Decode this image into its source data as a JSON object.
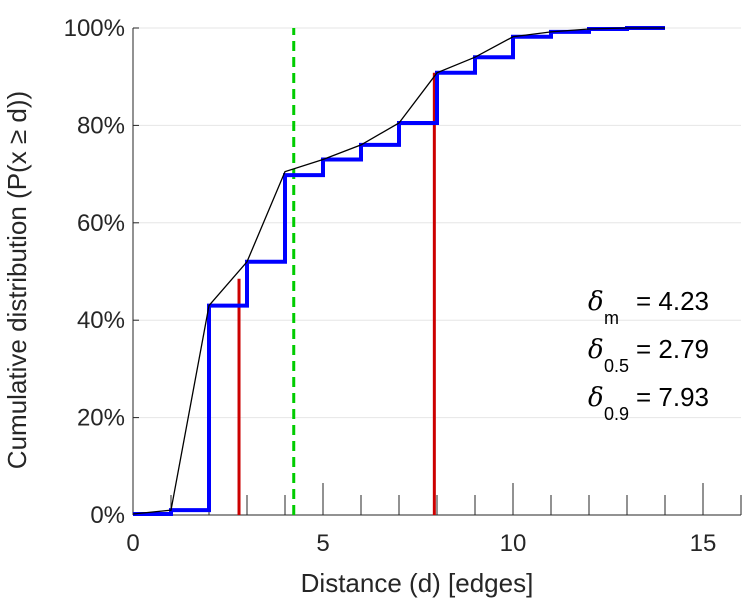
{
  "chart_data": {
    "type": "line",
    "title": "",
    "xlabel": "Distance (d) [edges]",
    "ylabel": "Cumulative distribution (P(x ≥ d))",
    "xlim": [
      0,
      16
    ],
    "ylim": [
      0,
      100
    ],
    "x_ticks": [
      0,
      5,
      10,
      15
    ],
    "x_tick_labels": [
      "0",
      "5",
      "10",
      "15"
    ],
    "y_ticks": [
      0,
      20,
      40,
      60,
      80,
      100
    ],
    "y_tick_labels": [
      "0%",
      "20%",
      "40%",
      "60%",
      "80%",
      "100%"
    ],
    "grid": "horizontal",
    "series": [
      {
        "kind": "step",
        "color": "#0000ff",
        "x": [
          0,
          1,
          2,
          3,
          4,
          5,
          6,
          7,
          8,
          9,
          10,
          11,
          12,
          13,
          14
        ],
        "y": [
          0.2,
          1.0,
          43.0,
          52.0,
          69.8,
          73.0,
          76.0,
          80.5,
          90.8,
          94.0,
          98.2,
          99.2,
          99.8,
          100.0,
          100.0
        ]
      },
      {
        "kind": "line",
        "color": "#000000",
        "x": [
          0,
          1,
          2,
          3,
          4,
          5,
          6,
          7,
          8,
          9,
          10,
          11,
          12,
          13,
          14
        ],
        "y": [
          0.2,
          1.0,
          43.0,
          52.0,
          70.5,
          73.0,
          76.0,
          80.5,
          90.8,
          94.0,
          98.2,
          99.2,
          99.8,
          100.0,
          100.0
        ]
      }
    ],
    "vertical_lines": [
      {
        "x": 2.79,
        "y_top": 48.5,
        "color": "#cc0000",
        "style": "solid"
      },
      {
        "x": 7.93,
        "y_top": 90.8,
        "color": "#cc0000",
        "style": "solid"
      },
      {
        "x": 4.23,
        "y_top": 100,
        "color": "#00cc00",
        "style": "dashed"
      }
    ],
    "annotations": [
      {
        "symbol": "δ",
        "sub": "m",
        "text": "= 4.23"
      },
      {
        "symbol": "δ",
        "sub": "0.5",
        "text": "= 2.79"
      },
      {
        "symbol": "δ",
        "sub": "0.9",
        "text": "= 7.93"
      }
    ]
  }
}
